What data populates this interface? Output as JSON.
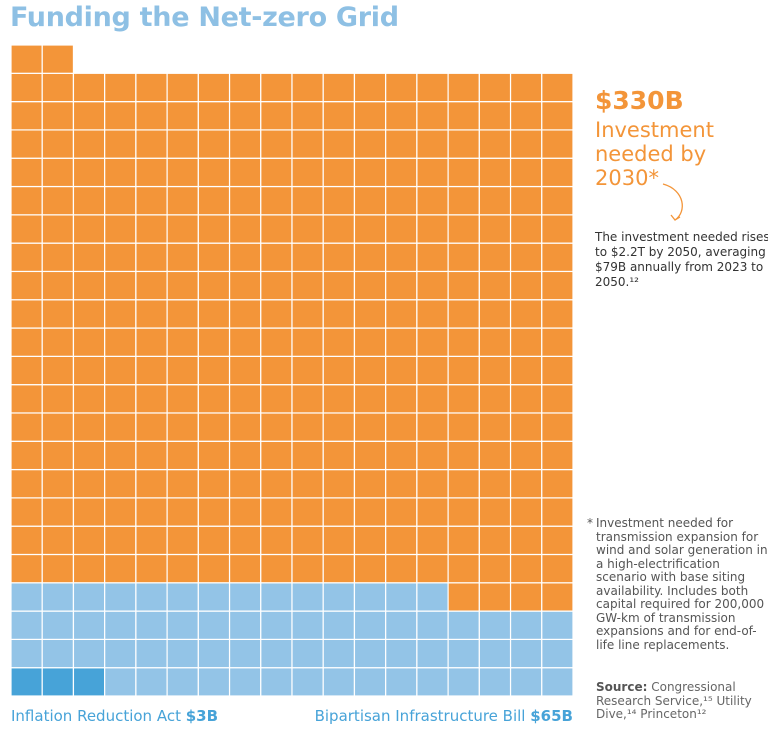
{
  "chart_data": {
    "type": "waffle",
    "title": "Funding the Net-zero Grid",
    "series": [
      {
        "name": "Inflation Reduction Act",
        "color": "#47a3d8",
        "values": [
          3
        ],
        "value_labels": [
          "$3B"
        ]
      },
      {
        "name": "Bipartisan Infrastructure Bill",
        "color": "#93c4e7",
        "values": [
          65
        ],
        "value_labels": [
          "$65B"
        ]
      },
      {
        "name": "Investment needed by 2030*",
        "color": "#f39539",
        "values": [
          330
        ],
        "value_labels": [
          "$330B"
        ]
      }
    ],
    "annotation": "The investment needed rises to $2.2T by 2050, averaging $79B annually from 2023 to 2050.¹²",
    "footnote_marker": "*",
    "footnote": "Investment needed for transmission expansion for wind and solar generation in a high-electrification scenario with base siting availability. Includes both capital required for 200,000 GW-km of transmission expansions and for end-of-life line replacements.",
    "source_label": "Source:",
    "source": "Congressional Research Service,¹⁵ Utility Dive,¹⁴ Princeton¹²"
  }
}
